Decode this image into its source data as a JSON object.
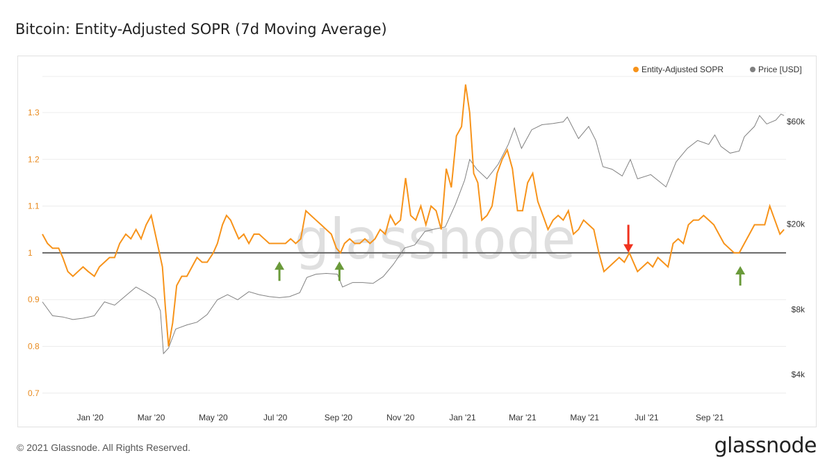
{
  "title": "Bitcoin: Entity-Adjusted SOPR (7d Moving Average)",
  "footer": {
    "copyright": "© 2021 Glassnode. All Rights Reserved.",
    "brand": "glassnode"
  },
  "watermark": "glassnode",
  "colors": {
    "sopr": "#f7931a",
    "price": "#808080",
    "baseline": "#666666",
    "up_arrow": "#6a9a3a",
    "down_arrow": "#f0321e"
  },
  "chart_data": {
    "type": "line",
    "legend": [
      "Entity-Adjusted SOPR",
      "Price [USD]"
    ],
    "legend_position": "top-right",
    "grid": true,
    "y_left": {
      "ticks": [
        "0.7",
        "0.8",
        "0.9",
        "1",
        "1.1",
        "1.2",
        "1.3"
      ],
      "range": [
        0.7,
        1.38
      ]
    },
    "y_right": {
      "ticks": [
        "$4k",
        "$8k",
        "$20k",
        "$60k"
      ],
      "scale": "log",
      "range": [
        4000,
        75000
      ]
    },
    "x_ticks": [
      "Jan '20",
      "Mar '20",
      "May '20",
      "Jul '20",
      "Sep '20",
      "Nov '20",
      "Jan '21",
      "Mar '21",
      "May '21",
      "Jul '21",
      "Sep '21"
    ],
    "x_range": [
      "2019-11-15",
      "2021-11-15"
    ],
    "baseline": 1.0,
    "series": [
      {
        "name": "Entity-Adjusted SOPR",
        "axis": "left",
        "points": [
          [
            "2019-11-15",
            1.04
          ],
          [
            "2019-11-20",
            1.02
          ],
          [
            "2019-11-25",
            1.01
          ],
          [
            "2019-12-01",
            1.01
          ],
          [
            "2019-12-05",
            0.99
          ],
          [
            "2019-12-10",
            0.96
          ],
          [
            "2019-12-15",
            0.95
          ],
          [
            "2019-12-20",
            0.96
          ],
          [
            "2019-12-25",
            0.97
          ],
          [
            "2019-12-30",
            0.96
          ],
          [
            "2020-01-05",
            0.95
          ],
          [
            "2020-01-10",
            0.97
          ],
          [
            "2020-01-15",
            0.98
          ],
          [
            "2020-01-20",
            0.99
          ],
          [
            "2020-01-25",
            0.99
          ],
          [
            "2020-01-30",
            1.02
          ],
          [
            "2020-02-05",
            1.04
          ],
          [
            "2020-02-10",
            1.03
          ],
          [
            "2020-02-15",
            1.05
          ],
          [
            "2020-02-20",
            1.03
          ],
          [
            "2020-02-25",
            1.06
          ],
          [
            "2020-03-01",
            1.08
          ],
          [
            "2020-03-05",
            1.04
          ],
          [
            "2020-03-08",
            1.01
          ],
          [
            "2020-03-12",
            0.97
          ],
          [
            "2020-03-15",
            0.88
          ],
          [
            "2020-03-18",
            0.8
          ],
          [
            "2020-03-22",
            0.85
          ],
          [
            "2020-03-26",
            0.93
          ],
          [
            "2020-03-31",
            0.95
          ],
          [
            "2020-04-05",
            0.95
          ],
          [
            "2020-04-10",
            0.97
          ],
          [
            "2020-04-15",
            0.99
          ],
          [
            "2020-04-20",
            0.98
          ],
          [
            "2020-04-25",
            0.98
          ],
          [
            "2020-05-01",
            1.0
          ],
          [
            "2020-05-05",
            1.02
          ],
          [
            "2020-05-10",
            1.06
          ],
          [
            "2020-05-14",
            1.08
          ],
          [
            "2020-05-18",
            1.07
          ],
          [
            "2020-05-22",
            1.05
          ],
          [
            "2020-05-26",
            1.03
          ],
          [
            "2020-05-31",
            1.04
          ],
          [
            "2020-06-05",
            1.02
          ],
          [
            "2020-06-10",
            1.04
          ],
          [
            "2020-06-15",
            1.04
          ],
          [
            "2020-06-20",
            1.03
          ],
          [
            "2020-06-25",
            1.02
          ],
          [
            "2020-07-01",
            1.02
          ],
          [
            "2020-07-06",
            1.02
          ],
          [
            "2020-07-11",
            1.02
          ],
          [
            "2020-07-16",
            1.03
          ],
          [
            "2020-07-21",
            1.02
          ],
          [
            "2020-07-26",
            1.03
          ],
          [
            "2020-07-31",
            1.09
          ],
          [
            "2020-08-05",
            1.08
          ],
          [
            "2020-08-10",
            1.07
          ],
          [
            "2020-08-15",
            1.06
          ],
          [
            "2020-08-20",
            1.05
          ],
          [
            "2020-08-25",
            1.04
          ],
          [
            "2020-08-30",
            1.01
          ],
          [
            "2020-09-03",
            1.0
          ],
          [
            "2020-09-07",
            1.02
          ],
          [
            "2020-09-12",
            1.03
          ],
          [
            "2020-09-17",
            1.02
          ],
          [
            "2020-09-22",
            1.02
          ],
          [
            "2020-09-27",
            1.03
          ],
          [
            "2020-10-02",
            1.02
          ],
          [
            "2020-10-07",
            1.03
          ],
          [
            "2020-10-12",
            1.05
          ],
          [
            "2020-10-17",
            1.04
          ],
          [
            "2020-10-22",
            1.08
          ],
          [
            "2020-10-27",
            1.06
          ],
          [
            "2020-11-01",
            1.07
          ],
          [
            "2020-11-06",
            1.16
          ],
          [
            "2020-11-11",
            1.08
          ],
          [
            "2020-11-16",
            1.07
          ],
          [
            "2020-11-21",
            1.1
          ],
          [
            "2020-11-26",
            1.06
          ],
          [
            "2020-12-01",
            1.1
          ],
          [
            "2020-12-06",
            1.09
          ],
          [
            "2020-12-11",
            1.05
          ],
          [
            "2020-12-16",
            1.18
          ],
          [
            "2020-12-21",
            1.14
          ],
          [
            "2020-12-26",
            1.25
          ],
          [
            "2020-12-31",
            1.27
          ],
          [
            "2021-01-04",
            1.36
          ],
          [
            "2021-01-08",
            1.3
          ],
          [
            "2021-01-12",
            1.17
          ],
          [
            "2021-01-16",
            1.15
          ],
          [
            "2021-01-20",
            1.07
          ],
          [
            "2021-01-25",
            1.08
          ],
          [
            "2021-01-30",
            1.1
          ],
          [
            "2021-02-04",
            1.17
          ],
          [
            "2021-02-09",
            1.2
          ],
          [
            "2021-02-14",
            1.22
          ],
          [
            "2021-02-19",
            1.18
          ],
          [
            "2021-02-24",
            1.09
          ],
          [
            "2021-03-01",
            1.09
          ],
          [
            "2021-03-06",
            1.15
          ],
          [
            "2021-03-11",
            1.17
          ],
          [
            "2021-03-16",
            1.11
          ],
          [
            "2021-03-21",
            1.08
          ],
          [
            "2021-03-26",
            1.05
          ],
          [
            "2021-03-31",
            1.07
          ],
          [
            "2021-04-05",
            1.08
          ],
          [
            "2021-04-10",
            1.07
          ],
          [
            "2021-04-15",
            1.09
          ],
          [
            "2021-04-20",
            1.04
          ],
          [
            "2021-04-25",
            1.05
          ],
          [
            "2021-04-30",
            1.07
          ],
          [
            "2021-05-05",
            1.06
          ],
          [
            "2021-05-10",
            1.05
          ],
          [
            "2021-05-15",
            1.0
          ],
          [
            "2021-05-20",
            0.96
          ],
          [
            "2021-05-25",
            0.97
          ],
          [
            "2021-05-30",
            0.98
          ],
          [
            "2021-06-04",
            0.99
          ],
          [
            "2021-06-09",
            0.98
          ],
          [
            "2021-06-14",
            1.0
          ],
          [
            "2021-06-18",
            0.98
          ],
          [
            "2021-06-22",
            0.96
          ],
          [
            "2021-06-27",
            0.97
          ],
          [
            "2021-07-02",
            0.98
          ],
          [
            "2021-07-07",
            0.97
          ],
          [
            "2021-07-12",
            0.99
          ],
          [
            "2021-07-17",
            0.98
          ],
          [
            "2021-07-22",
            0.97
          ],
          [
            "2021-07-27",
            1.02
          ],
          [
            "2021-08-01",
            1.03
          ],
          [
            "2021-08-06",
            1.02
          ],
          [
            "2021-08-11",
            1.06
          ],
          [
            "2021-08-16",
            1.07
          ],
          [
            "2021-08-21",
            1.07
          ],
          [
            "2021-08-26",
            1.08
          ],
          [
            "2021-08-31",
            1.07
          ],
          [
            "2021-09-05",
            1.06
          ],
          [
            "2021-09-10",
            1.04
          ],
          [
            "2021-09-15",
            1.02
          ],
          [
            "2021-09-20",
            1.01
          ],
          [
            "2021-09-25",
            1.0
          ],
          [
            "2021-09-30",
            1.0
          ],
          [
            "2021-10-05",
            1.02
          ],
          [
            "2021-10-10",
            1.04
          ],
          [
            "2021-10-15",
            1.06
          ],
          [
            "2021-10-20",
            1.06
          ],
          [
            "2021-10-25",
            1.06
          ],
          [
            "2021-10-30",
            1.1
          ],
          [
            "2021-11-04",
            1.07
          ],
          [
            "2021-11-09",
            1.04
          ],
          [
            "2021-11-13",
            1.05
          ]
        ]
      },
      {
        "name": "Price [USD]",
        "axis": "right",
        "points": [
          [
            "2019-11-15",
            8700
          ],
          [
            "2019-11-25",
            7500
          ],
          [
            "2019-12-05",
            7400
          ],
          [
            "2019-12-15",
            7200
          ],
          [
            "2019-12-25",
            7300
          ],
          [
            "2020-01-05",
            7500
          ],
          [
            "2020-01-15",
            8700
          ],
          [
            "2020-01-25",
            8400
          ],
          [
            "2020-02-05",
            9300
          ],
          [
            "2020-02-15",
            10200
          ],
          [
            "2020-02-25",
            9600
          ],
          [
            "2020-03-05",
            9000
          ],
          [
            "2020-03-10",
            7900
          ],
          [
            "2020-03-13",
            5000
          ],
          [
            "2020-03-18",
            5300
          ],
          [
            "2020-03-25",
            6500
          ],
          [
            "2020-04-05",
            6800
          ],
          [
            "2020-04-15",
            7000
          ],
          [
            "2020-04-25",
            7600
          ],
          [
            "2020-05-05",
            8900
          ],
          [
            "2020-05-15",
            9400
          ],
          [
            "2020-05-25",
            8900
          ],
          [
            "2020-06-05",
            9700
          ],
          [
            "2020-06-15",
            9400
          ],
          [
            "2020-06-25",
            9200
          ],
          [
            "2020-07-05",
            9100
          ],
          [
            "2020-07-15",
            9200
          ],
          [
            "2020-07-25",
            9600
          ],
          [
            "2020-08-01",
            11300
          ],
          [
            "2020-08-10",
            11700
          ],
          [
            "2020-08-20",
            11800
          ],
          [
            "2020-08-31",
            11700
          ],
          [
            "2020-09-05",
            10200
          ],
          [
            "2020-09-15",
            10700
          ],
          [
            "2020-09-25",
            10700
          ],
          [
            "2020-10-05",
            10600
          ],
          [
            "2020-10-15",
            11400
          ],
          [
            "2020-10-25",
            13000
          ],
          [
            "2020-11-05",
            15500
          ],
          [
            "2020-11-15",
            16000
          ],
          [
            "2020-11-25",
            18500
          ],
          [
            "2020-12-05",
            19000
          ],
          [
            "2020-12-15",
            19400
          ],
          [
            "2020-12-25",
            24700
          ],
          [
            "2021-01-03",
            32000
          ],
          [
            "2021-01-08",
            40000
          ],
          [
            "2021-01-15",
            36000
          ],
          [
            "2021-01-25",
            32500
          ],
          [
            "2021-02-05",
            38000
          ],
          [
            "2021-02-15",
            47000
          ],
          [
            "2021-02-21",
            56000
          ],
          [
            "2021-02-28",
            45000
          ],
          [
            "2021-03-10",
            55000
          ],
          [
            "2021-03-20",
            58000
          ],
          [
            "2021-03-31",
            58800
          ],
          [
            "2021-04-10",
            59800
          ],
          [
            "2021-04-14",
            63000
          ],
          [
            "2021-04-25",
            50000
          ],
          [
            "2021-05-05",
            57000
          ],
          [
            "2021-05-12",
            49000
          ],
          [
            "2021-05-19",
            37000
          ],
          [
            "2021-05-28",
            36000
          ],
          [
            "2021-06-07",
            33500
          ],
          [
            "2021-06-15",
            40000
          ],
          [
            "2021-06-22",
            32500
          ],
          [
            "2021-07-05",
            34000
          ],
          [
            "2021-07-20",
            29800
          ],
          [
            "2021-07-30",
            39000
          ],
          [
            "2021-08-10",
            45000
          ],
          [
            "2021-08-20",
            49000
          ],
          [
            "2021-08-31",
            47000
          ],
          [
            "2021-09-06",
            52000
          ],
          [
            "2021-09-12",
            46000
          ],
          [
            "2021-09-21",
            42800
          ],
          [
            "2021-09-30",
            43800
          ],
          [
            "2021-10-05",
            51000
          ],
          [
            "2021-10-15",
            57000
          ],
          [
            "2021-10-20",
            64000
          ],
          [
            "2021-10-27",
            58500
          ],
          [
            "2021-11-05",
            61000
          ],
          [
            "2021-11-10",
            65000
          ],
          [
            "2021-11-13",
            64000
          ]
        ]
      }
    ],
    "annotations": [
      {
        "type": "arrow-up",
        "date": "2020-07-05",
        "value": 0.94
      },
      {
        "type": "arrow-up",
        "date": "2020-09-02",
        "value": 0.94
      },
      {
        "type": "arrow-down",
        "date": "2021-06-13",
        "value": 1.06
      },
      {
        "type": "arrow-up",
        "date": "2021-10-01",
        "value": 0.93
      }
    ]
  }
}
